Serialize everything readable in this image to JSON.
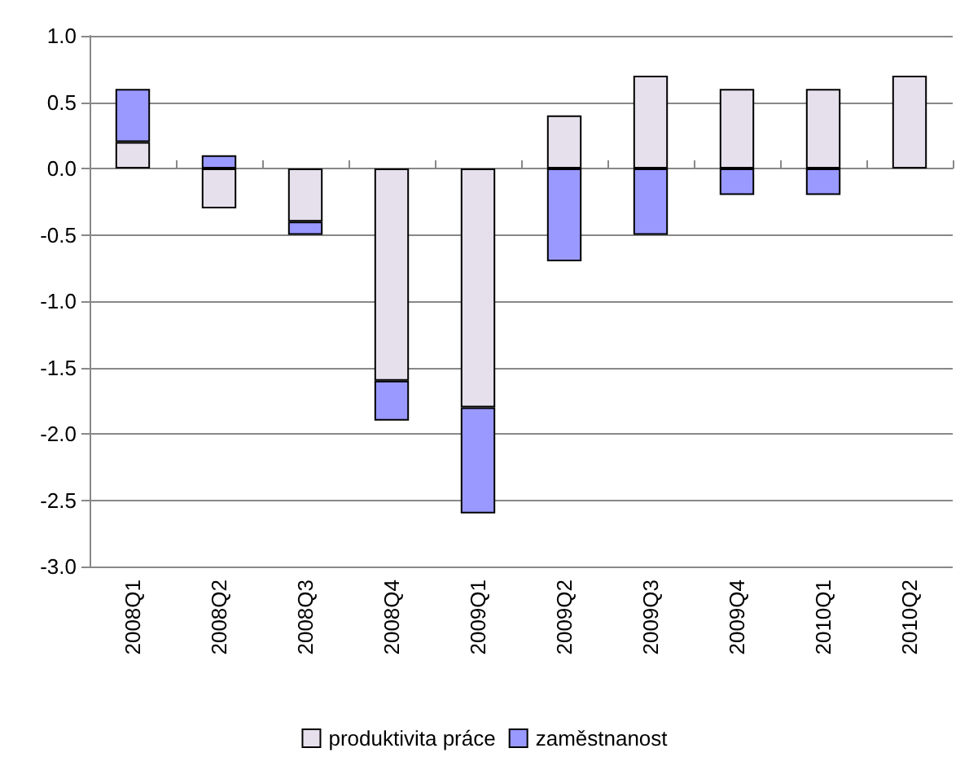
{
  "chart_data": {
    "type": "bar",
    "stacked": true,
    "categories": [
      "2008Q1",
      "2008Q2",
      "2008Q3",
      "2008Q4",
      "2009Q1",
      "2009Q2",
      "2009Q3",
      "2009Q4",
      "2010Q1",
      "2010Q2"
    ],
    "series": [
      {
        "name": "produktivita práce",
        "color": "#e6e0ec",
        "values": [
          0.2,
          -0.3,
          -0.4,
          -1.6,
          -1.8,
          0.4,
          0.7,
          0.6,
          0.6,
          0.7
        ]
      },
      {
        "name": "zaměstnanost",
        "color": "#9999ff",
        "values": [
          0.4,
          0.1,
          -0.1,
          -0.3,
          -0.8,
          -0.7,
          -0.5,
          -0.2,
          -0.2,
          null
        ]
      }
    ],
    "ylim": [
      -3,
      1
    ],
    "yticks": [
      {
        "value": -3,
        "label": "-3.0"
      },
      {
        "value": -2.5,
        "label": "-2.5"
      },
      {
        "value": -2,
        "label": "-2.0"
      },
      {
        "value": -1.5,
        "label": "-1.5"
      },
      {
        "value": -1,
        "label": "-1.0"
      },
      {
        "value": -0.5,
        "label": "-0.5"
      },
      {
        "value": 0,
        "label": "0.0"
      },
      {
        "value": 0.5,
        "label": "0.5"
      },
      {
        "value": 1,
        "label": "1.0"
      }
    ],
    "grid": "y",
    "legend": "bottom"
  }
}
